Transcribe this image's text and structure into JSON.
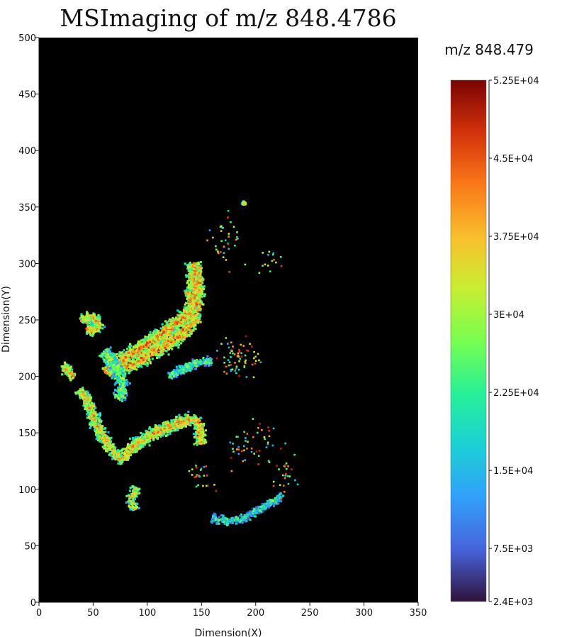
{
  "chart_data": {
    "type": "heatmap",
    "title": "MSImaging of m/z 848.4786",
    "xlabel": "Dimension(X)",
    "ylabel": "Dimension(Y)",
    "xlim": [
      0,
      350
    ],
    "ylim": [
      0,
      500
    ],
    "x_ticks": [
      "0",
      "50",
      "100",
      "150",
      "200",
      "250",
      "300",
      "350"
    ],
    "y_ticks": [
      "0",
      "50",
      "100",
      "150",
      "200",
      "250",
      "300",
      "350",
      "400",
      "450",
      "500"
    ],
    "grid": false,
    "background_color": "#000000",
    "colorbar": {
      "title": "m/z 848.479",
      "range": [
        2400,
        52500
      ],
      "ticks": [
        {
          "value": 2400,
          "label": "2.4E+03"
        },
        {
          "value": 7500,
          "label": "7.5E+03"
        },
        {
          "value": 15000,
          "label": "1.5E+04"
        },
        {
          "value": 22500,
          "label": "2.25E+04"
        },
        {
          "value": 30000,
          "label": "3E+04"
        },
        {
          "value": 37500,
          "label": "3.75E+04"
        },
        {
          "value": 45000,
          "label": "4.5E+04"
        },
        {
          "value": 52500,
          "label": "5.25E+04"
        }
      ],
      "colormap": "turbo",
      "placement": "right"
    },
    "regions": [
      {
        "name": "upper-arm",
        "path": [
          [
            62,
            203
          ],
          [
            72,
            212
          ],
          [
            88,
            222
          ],
          [
            105,
            232
          ],
          [
            120,
            242
          ],
          [
            132,
            250
          ],
          [
            140,
            258
          ],
          [
            142,
            280
          ],
          [
            143,
            300
          ],
          [
            146,
            290
          ],
          [
            145,
            262
          ],
          [
            142,
            248
          ],
          [
            130,
            236
          ],
          [
            112,
            224
          ],
          [
            92,
            214
          ],
          [
            75,
            206
          ]
        ],
        "width": 17,
        "value": 40000
      },
      {
        "name": "upper-left-blob",
        "path": [
          [
            40,
            248
          ],
          [
            48,
            254
          ],
          [
            55,
            248
          ],
          [
            52,
            240
          ],
          [
            44,
            242
          ]
        ],
        "width": 14,
        "value": 35000
      },
      {
        "name": "left-small-blob",
        "path": [
          [
            22,
            210
          ],
          [
            28,
            204
          ],
          [
            32,
            198
          ]
        ],
        "width": 11,
        "value": 37000
      },
      {
        "name": "center-knot",
        "path": [
          [
            60,
            222
          ],
          [
            68,
            212
          ],
          [
            75,
            200
          ],
          [
            78,
            190
          ],
          [
            73,
            180
          ]
        ],
        "width": 15,
        "value": 27000
      },
      {
        "name": "middle-right-blob",
        "path": [
          [
            120,
            200
          ],
          [
            132,
            206
          ],
          [
            145,
            212
          ],
          [
            160,
            214
          ]
        ],
        "width": 10,
        "value": 24000
      },
      {
        "name": "lower-left-arm",
        "path": [
          [
            38,
            188
          ],
          [
            46,
            176
          ],
          [
            52,
            160
          ],
          [
            60,
            144
          ],
          [
            70,
            132
          ],
          [
            78,
            125
          ]
        ],
        "width": 14,
        "value": 36000
      },
      {
        "name": "lower-arm",
        "path": [
          [
            78,
            130
          ],
          [
            95,
            143
          ],
          [
            112,
            152
          ],
          [
            128,
            158
          ],
          [
            140,
            162
          ],
          [
            148,
            158
          ],
          [
            150,
            140
          ]
        ],
        "width": 15,
        "value": 38000
      },
      {
        "name": "lower-drip",
        "path": [
          [
            90,
            102
          ],
          [
            85,
            92
          ],
          [
            88,
            82
          ]
        ],
        "width": 11,
        "value": 33000
      },
      {
        "name": "bottom-curl",
        "path": [
          [
            160,
            75
          ],
          [
            176,
            71
          ],
          [
            190,
            75
          ],
          [
            205,
            83
          ],
          [
            218,
            90
          ],
          [
            225,
            95
          ]
        ],
        "width": 9,
        "value": 20000
      },
      {
        "name": "top-spot",
        "path": [
          [
            189,
            352
          ],
          [
            190,
            354
          ]
        ],
        "width": 5,
        "value": 34000
      }
    ]
  }
}
